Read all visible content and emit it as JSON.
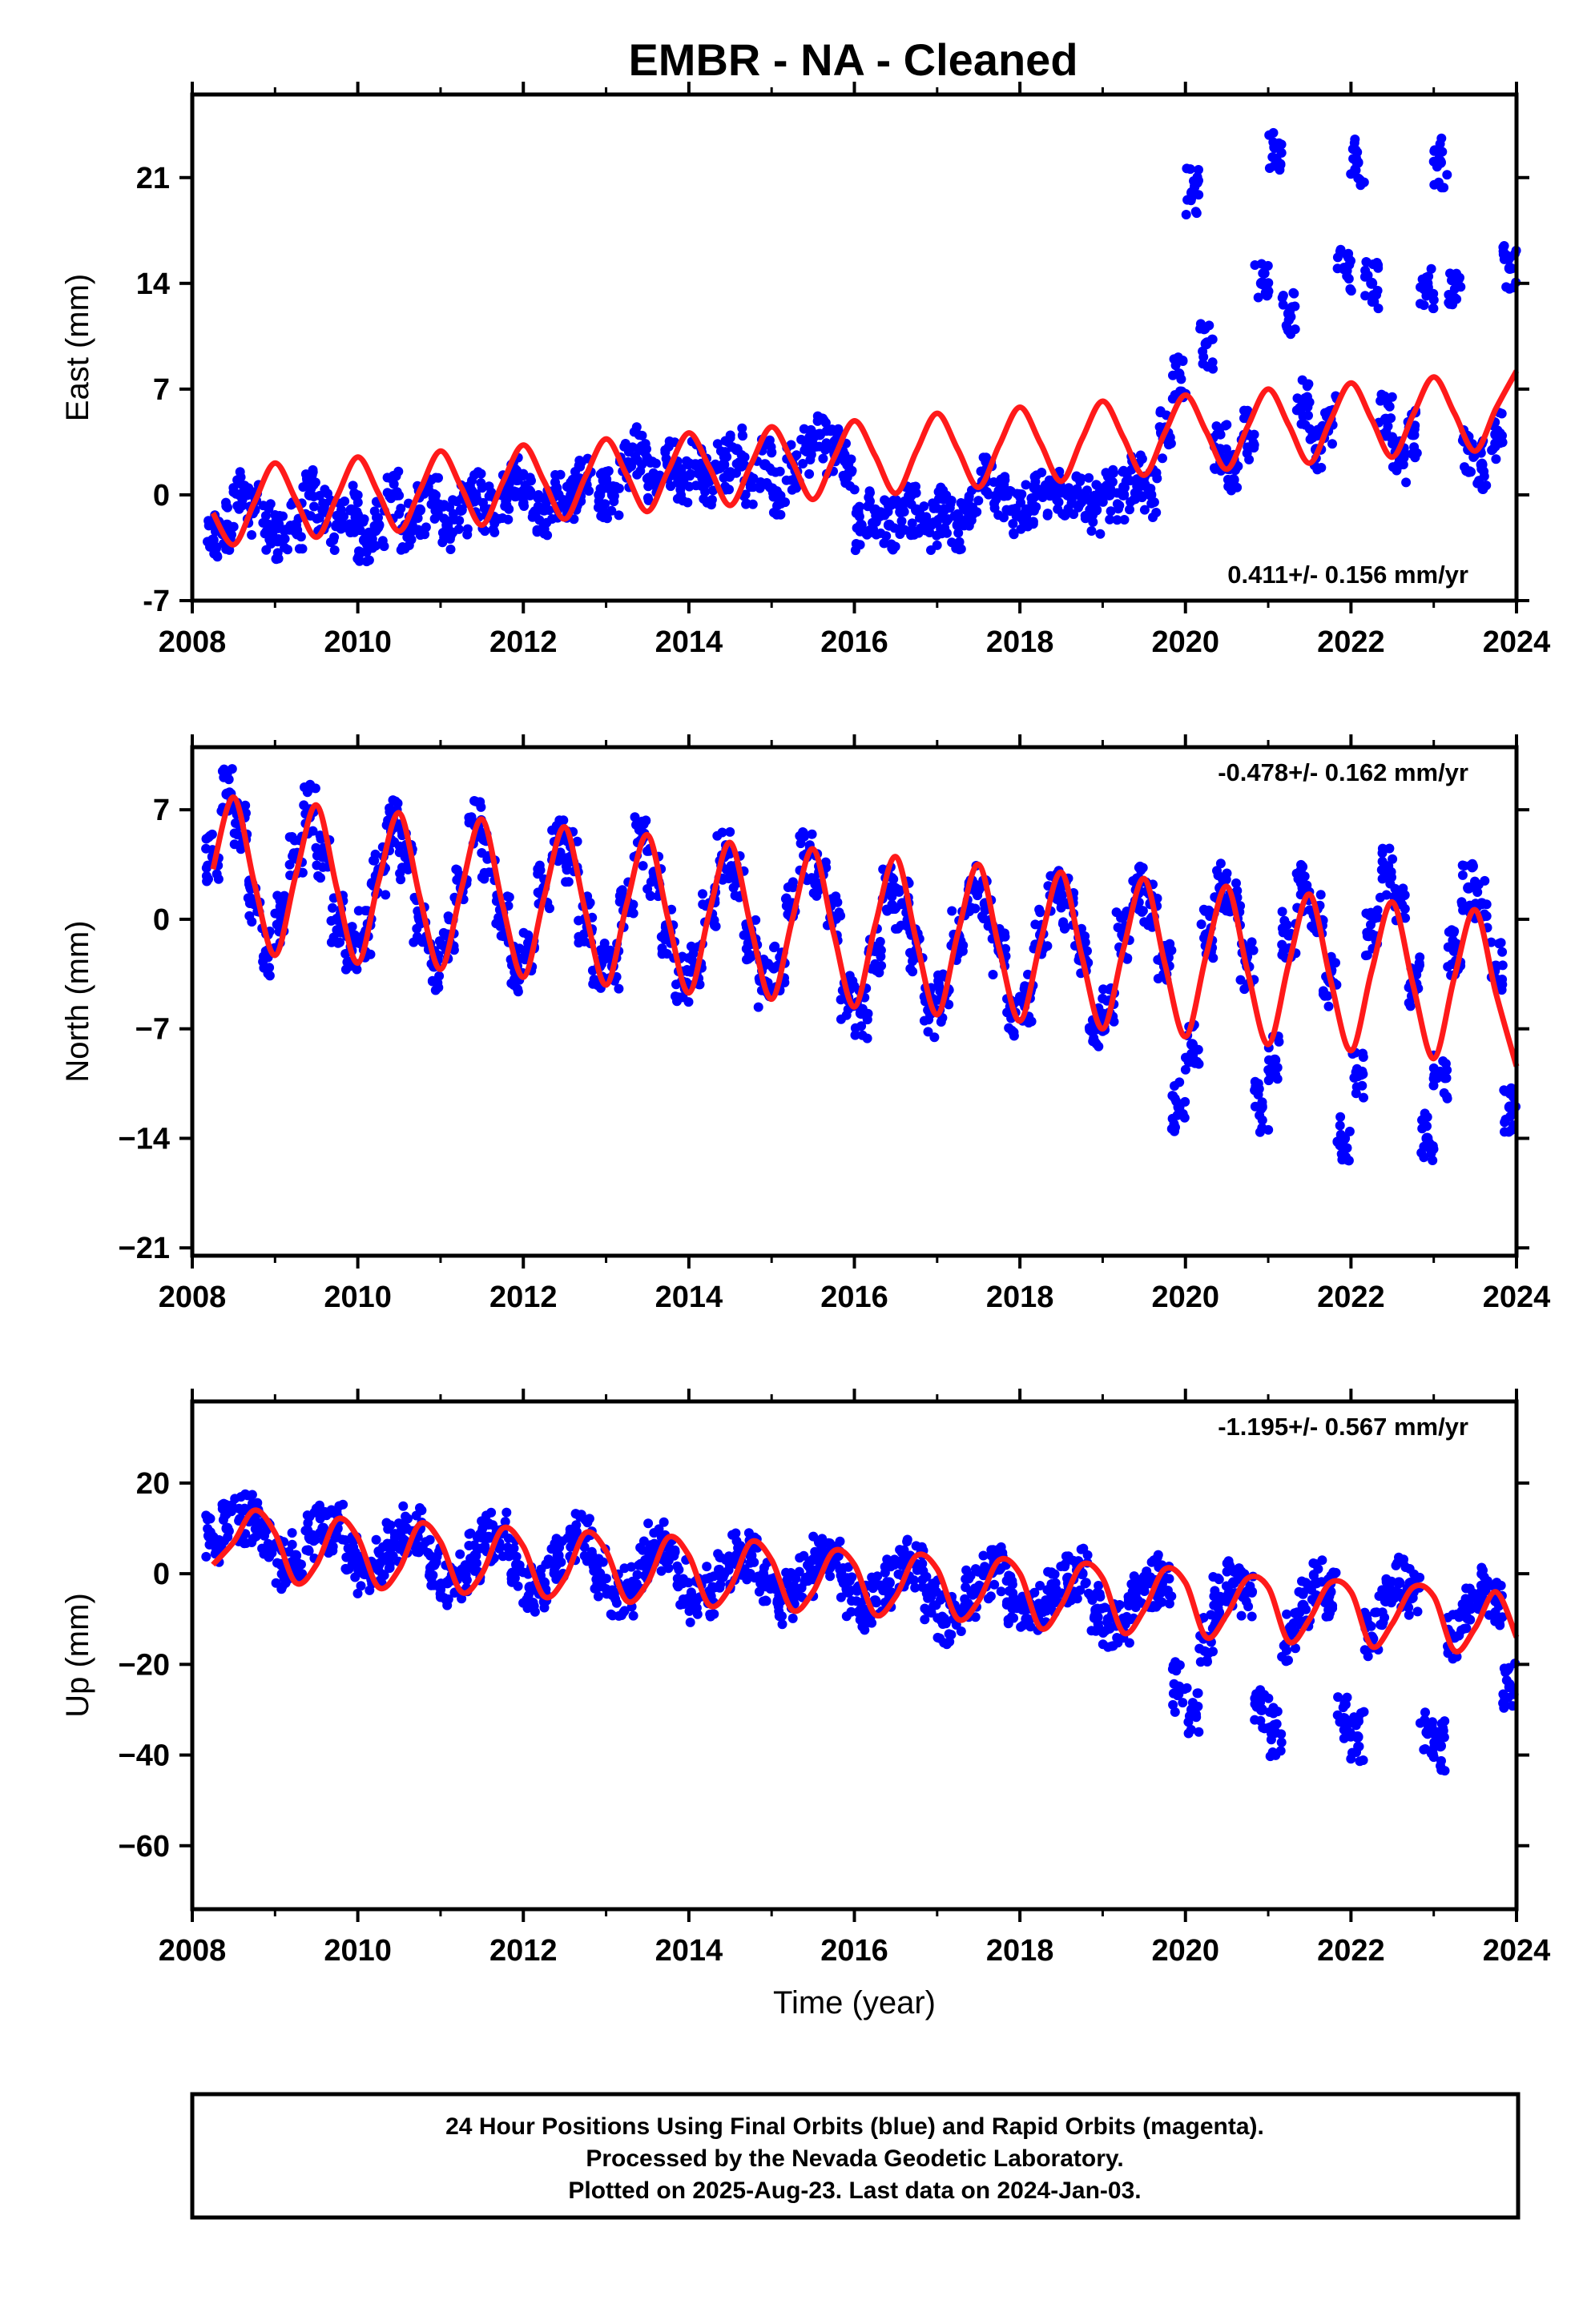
{
  "title": "EMBR  - NA - Cleaned",
  "colors": {
    "final_orbits": "#0000ff",
    "model": "#ff1a1a",
    "frame": "#000000"
  },
  "chart_data": [
    {
      "type": "scatter",
      "component": "east",
      "ylabel": "East (mm)",
      "xlabel": "",
      "xlim": [
        2008,
        2024
      ],
      "ylim": [
        -7,
        26.5
      ],
      "xticks": [
        2008,
        2010,
        2012,
        2014,
        2016,
        2018,
        2020,
        2022,
        2024
      ],
      "yticks": [
        -7,
        0,
        7,
        14,
        21
      ],
      "ytick_labels": [
        "-7",
        "0",
        "7",
        "14",
        "21"
      ],
      "rate_label": "0.411+/- 0.156 mm/yr",
      "series": [
        {
          "x": [
            2008.25,
            2008.42,
            2008.58,
            2008.75,
            2008.92,
            2009.08,
            2009.25,
            2009.42,
            2009.58,
            2009.75,
            2009.92,
            2010.08,
            2010.25,
            2010.42,
            2010.58,
            2010.75,
            2010.92,
            2011.08,
            2011.25,
            2011.42,
            2011.58,
            2011.75,
            2011.92,
            2012.08,
            2012.25,
            2012.42,
            2012.58,
            2012.75,
            2012.92,
            2013.08,
            2013.25,
            2013.42,
            2013.58,
            2013.75,
            2013.92,
            2014.08,
            2014.25,
            2014.42,
            2014.58,
            2014.75,
            2014.92,
            2015.08,
            2015.25,
            2015.42,
            2015.58,
            2015.75,
            2015.92,
            2016.08,
            2016.25,
            2016.42,
            2016.58,
            2016.75,
            2016.92,
            2017.08,
            2017.25,
            2017.42,
            2017.58,
            2017.75,
            2017.92,
            2018.08,
            2018.25,
            2018.42,
            2018.58,
            2018.75,
            2018.92,
            2019.08,
            2019.25,
            2019.42,
            2019.58,
            2019.75,
            2019.92,
            2020.08,
            2020.25,
            2020.42,
            2020.58,
            2020.75,
            2020.92,
            2021.08,
            2021.25,
            2021.42,
            2021.58,
            2021.75,
            2021.92,
            2022.08,
            2022.25,
            2022.42,
            2022.58,
            2022.75,
            2022.92,
            2023.08,
            2023.25,
            2023.42,
            2023.58,
            2023.75,
            2023.92
          ],
          "y": [
            -3,
            -2,
            0,
            -1,
            -2,
            -3,
            -2,
            0,
            -1,
            -2,
            -1,
            -3,
            -2,
            0,
            -2,
            -1,
            0,
            -2,
            -1,
            0,
            -1,
            0,
            1,
            0,
            -1,
            0,
            0,
            1,
            0,
            0,
            2,
            3,
            1,
            2,
            1,
            2,
            1,
            2,
            3,
            1,
            2,
            0,
            2,
            3,
            4,
            3,
            2,
            -2,
            -1,
            -2,
            -1,
            -1,
            -2,
            -1,
            -2,
            -1,
            1,
            0,
            -1,
            -1,
            0,
            0,
            0,
            0,
            -1,
            0,
            0,
            1,
            0,
            4,
            8,
            20,
            10,
            3,
            1,
            4,
            14,
            23,
            12,
            6,
            3,
            5,
            15,
            22,
            14,
            5,
            2,
            4,
            14,
            22,
            13,
            3,
            2,
            4,
            15
          ]
        }
      ],
      "model": {
        "x": [
          2008.25,
          2008.5,
          2008.75,
          2009.0,
          2009.25,
          2009.5,
          2009.75,
          2010.0,
          2010.25,
          2010.5,
          2010.75,
          2011.0,
          2011.25,
          2011.5,
          2011.75,
          2012.0,
          2012.25,
          2012.5,
          2012.75,
          2013.0,
          2013.25,
          2013.5,
          2013.75,
          2014.0,
          2014.25,
          2014.5,
          2014.75,
          2015.0,
          2015.25,
          2015.5,
          2015.75,
          2016.0,
          2016.25,
          2016.5,
          2016.75,
          2017.0,
          2017.25,
          2017.5,
          2017.75,
          2018.0,
          2018.25,
          2018.5,
          2018.75,
          2019.0,
          2019.25,
          2019.5,
          2019.75,
          2020.0,
          2020.25,
          2020.5,
          2020.75,
          2021.0,
          2021.25,
          2021.5,
          2021.75,
          2022.0,
          2022.25,
          2022.5,
          2022.75,
          2023.0,
          2023.25,
          2023.5,
          2023.75,
          2024.0
        ],
        "y": [
          -1.2,
          -3.3,
          -0.5,
          2.1,
          -0.3,
          -2.8,
          -0.1,
          2.5,
          0.1,
          -2.4,
          0.3,
          2.9,
          0.5,
          -2.0,
          0.8,
          3.3,
          0.9,
          -1.6,
          1.2,
          3.7,
          1.3,
          -1.1,
          1.6,
          4.1,
          1.8,
          -0.7,
          2.0,
          4.5,
          2.2,
          -0.3,
          2.4,
          4.9,
          2.6,
          0.1,
          2.9,
          5.4,
          3.0,
          0.5,
          3.3,
          5.8,
          3.4,
          0.9,
          3.7,
          6.2,
          3.8,
          1.3,
          4.1,
          6.6,
          4.2,
          1.7,
          4.5,
          7.0,
          4.6,
          2.1,
          4.9,
          7.4,
          5.0,
          2.5,
          5.3,
          7.8,
          5.4,
          2.9,
          5.7,
          8.2
        ]
      }
    },
    {
      "type": "scatter",
      "component": "north",
      "ylabel": "North (mm)",
      "xlabel": "",
      "xlim": [
        2008,
        2024
      ],
      "ylim": [
        -21.5,
        11
      ],
      "xticks": [
        2008,
        2010,
        2012,
        2014,
        2016,
        2018,
        2020,
        2022,
        2024
      ],
      "yticks": [
        -21,
        -14,
        -7,
        0,
        7
      ],
      "ytick_labels": [
        "−21",
        "−14",
        "−7",
        "0",
        "7"
      ],
      "rate_label": "-0.478+/- 0.162 mm/yr",
      "series": [
        {
          "x": [
            2008.25,
            2008.42,
            2008.58,
            2008.75,
            2008.92,
            2009.08,
            2009.25,
            2009.42,
            2009.58,
            2009.75,
            2009.92,
            2010.08,
            2010.25,
            2010.42,
            2010.58,
            2010.75,
            2010.92,
            2011.08,
            2011.25,
            2011.42,
            2011.58,
            2011.75,
            2011.92,
            2012.08,
            2012.25,
            2012.42,
            2012.58,
            2012.75,
            2012.92,
            2013.08,
            2013.25,
            2013.42,
            2013.58,
            2013.75,
            2013.92,
            2014.08,
            2014.25,
            2014.42,
            2014.58,
            2014.75,
            2014.92,
            2015.08,
            2015.25,
            2015.42,
            2015.58,
            2015.75,
            2015.92,
            2016.08,
            2016.25,
            2016.42,
            2016.58,
            2016.75,
            2016.92,
            2017.08,
            2017.25,
            2017.42,
            2017.58,
            2017.75,
            2017.92,
            2018.08,
            2018.25,
            2018.42,
            2018.58,
            2018.75,
            2018.92,
            2019.08,
            2019.25,
            2019.42,
            2019.58,
            2019.75,
            2019.92,
            2020.08,
            2020.25,
            2020.42,
            2020.58,
            2020.75,
            2020.92,
            2021.08,
            2021.25,
            2021.42,
            2021.58,
            2021.75,
            2021.92,
            2022.08,
            2022.25,
            2022.42,
            2022.58,
            2022.75,
            2022.92,
            2023.08,
            2023.25,
            2023.42,
            2023.58,
            2023.75,
            2023.92
          ],
          "y": [
            4,
            8,
            6,
            1,
            -2,
            0,
            4,
            7,
            4,
            0,
            -2,
            -1,
            3,
            6,
            4,
            0,
            -3,
            -1,
            2,
            6,
            4,
            0,
            -3,
            -2,
            2,
            5,
            4,
            0,
            -3,
            -3,
            1,
            5,
            3,
            -1,
            -4,
            -3,
            1,
            4,
            3,
            -1,
            -4,
            -3,
            1,
            4,
            3,
            0,
            -5,
            -6,
            -2,
            2,
            1,
            -2,
            -6,
            -5,
            -1,
            2,
            1,
            -2,
            -6,
            -5,
            -1,
            2,
            1,
            -2,
            -7,
            -6,
            -1,
            2,
            1,
            -3,
            -12,
            -8,
            -1,
            2,
            1,
            -3,
            -12,
            -9,
            -1,
            2,
            0,
            -4,
            -14,
            -10,
            -1,
            3,
            1,
            -4,
            -14,
            -10,
            -2,
            2,
            1,
            -3,
            -12
          ]
        }
      ],
      "model": {
        "x": [
          2008.25,
          2008.5,
          2008.75,
          2009.0,
          2009.25,
          2009.5,
          2009.75,
          2010.0,
          2010.25,
          2010.5,
          2010.75,
          2011.0,
          2011.25,
          2011.5,
          2011.75,
          2012.0,
          2012.25,
          2012.5,
          2012.75,
          2013.0,
          2013.25,
          2013.5,
          2013.75,
          2014.0,
          2014.25,
          2014.5,
          2014.75,
          2015.0,
          2015.25,
          2015.5,
          2015.75,
          2016.0,
          2016.25,
          2016.5,
          2016.75,
          2017.0,
          2017.25,
          2017.5,
          2017.75,
          2018.0,
          2018.25,
          2018.5,
          2018.75,
          2019.0,
          2019.25,
          2019.5,
          2019.75,
          2020.0,
          2020.25,
          2020.5,
          2020.75,
          2021.0,
          2021.25,
          2021.5,
          2021.75,
          2022.0,
          2022.25,
          2022.5,
          2022.75,
          2023.0,
          2023.25,
          2023.5,
          2023.75,
          2024.0
        ],
        "y": [
          3.2,
          7.8,
          2.3,
          -2.3,
          2.8,
          7.3,
          1.9,
          -2.8,
          2.4,
          6.8,
          1.4,
          -3.2,
          1.9,
          6.4,
          0.9,
          -3.7,
          1.4,
          5.9,
          0.5,
          -4.2,
          1.0,
          5.4,
          0.0,
          -4.7,
          0.5,
          4.9,
          -0.5,
          -5.1,
          0.0,
          4.5,
          -0.9,
          -5.6,
          -0.4,
          4.0,
          -1.4,
          -6.1,
          -0.9,
          3.5,
          -1.9,
          -6.5,
          -1.4,
          3.0,
          -2.4,
          -7.0,
          -1.9,
          2.6,
          -2.8,
          -7.5,
          -2.3,
          2.1,
          -3.3,
          -8.0,
          -2.8,
          1.6,
          -3.8,
          -8.4,
          -3.3,
          1.1,
          -4.2,
          -8.9,
          -3.7,
          0.6,
          -4.7,
          -9.4
        ]
      }
    },
    {
      "type": "scatter",
      "component": "up",
      "ylabel": "Up (mm)",
      "xlabel": "Time (year)",
      "xlim": [
        2008,
        2024
      ],
      "ylim": [
        -74,
        38
      ],
      "xticks": [
        2008,
        2010,
        2012,
        2014,
        2016,
        2018,
        2020,
        2022,
        2024
      ],
      "yticks": [
        -60,
        -40,
        -20,
        0,
        20
      ],
      "ytick_labels": [
        "−60",
        "−40",
        "−20",
        "0",
        "20"
      ],
      "rate_label": "-1.195+/- 0.567 mm/yr",
      "series": [
        {
          "x": [
            2008.25,
            2008.42,
            2008.58,
            2008.75,
            2008.92,
            2009.08,
            2009.25,
            2009.42,
            2009.58,
            2009.75,
            2009.92,
            2010.08,
            2010.25,
            2010.42,
            2010.58,
            2010.75,
            2010.92,
            2011.08,
            2011.25,
            2011.42,
            2011.58,
            2011.75,
            2011.92,
            2012.08,
            2012.25,
            2012.42,
            2012.58,
            2012.75,
            2012.92,
            2013.08,
            2013.25,
            2013.42,
            2013.58,
            2013.75,
            2013.92,
            2014.08,
            2014.25,
            2014.42,
            2014.58,
            2014.75,
            2014.92,
            2015.08,
            2015.25,
            2015.42,
            2015.58,
            2015.75,
            2015.92,
            2016.08,
            2016.25,
            2016.42,
            2016.58,
            2016.75,
            2016.92,
            2017.08,
            2017.25,
            2017.42,
            2017.58,
            2017.75,
            2017.92,
            2018.08,
            2018.25,
            2018.42,
            2018.58,
            2018.75,
            2018.92,
            2019.08,
            2019.25,
            2019.42,
            2019.58,
            2019.75,
            2019.92,
            2020.08,
            2020.25,
            2020.42,
            2020.58,
            2020.75,
            2020.92,
            2021.08,
            2021.25,
            2021.42,
            2021.58,
            2021.75,
            2021.92,
            2022.08,
            2022.25,
            2022.42,
            2022.58,
            2022.75,
            2022.92,
            2023.08,
            2023.25,
            2023.42,
            2023.58,
            2023.75,
            2023.92
          ],
          "y": [
            8,
            10,
            12,
            12,
            6,
            2,
            4,
            8,
            10,
            10,
            4,
            0,
            2,
            6,
            10,
            10,
            2,
            -2,
            0,
            4,
            8,
            9,
            2,
            -3,
            -2,
            4,
            8,
            8,
            0,
            -4,
            -4,
            2,
            6,
            6,
            -2,
            -6,
            -4,
            0,
            4,
            4,
            -2,
            -6,
            -5,
            -1,
            4,
            4,
            -4,
            -8,
            -6,
            -2,
            2,
            2,
            -5,
            -10,
            -8,
            -4,
            0,
            1,
            -6,
            -10,
            -8,
            -5,
            -1,
            0,
            -8,
            -12,
            -10,
            -6,
            -2,
            -1,
            -25,
            -30,
            -14,
            -6,
            -2,
            -4,
            -30,
            -35,
            -14,
            -7,
            -2,
            -4,
            -32,
            -36,
            -14,
            -6,
            -2,
            -4,
            -35,
            -38,
            -14,
            -7,
            -4,
            -6,
            -25
          ]
        }
      ],
      "model": {
        "x": [
          2008.25,
          2008.5,
          2008.75,
          2009.0,
          2009.25,
          2009.5,
          2009.75,
          2010.0,
          2010.25,
          2010.5,
          2010.75,
          2011.0,
          2011.25,
          2011.5,
          2011.75,
          2012.0,
          2012.25,
          2012.5,
          2012.75,
          2013.0,
          2013.25,
          2013.5,
          2013.75,
          2014.0,
          2014.25,
          2014.5,
          2014.75,
          2015.0,
          2015.25,
          2015.5,
          2015.75,
          2016.0,
          2016.25,
          2016.5,
          2016.75,
          2017.0,
          2017.25,
          2017.5,
          2017.75,
          2018.0,
          2018.25,
          2018.5,
          2018.75,
          2019.0,
          2019.25,
          2019.5,
          2019.75,
          2020.0,
          2020.25,
          2020.5,
          2020.75,
          2021.0,
          2021.25,
          2021.5,
          2021.75,
          2022.0,
          2022.25,
          2022.5,
          2022.75,
          2023.0,
          2023.25,
          2023.5,
          2023.75,
          2024.0
        ],
        "y": [
          2,
          7,
          14,
          9,
          -2,
          2,
          12,
          8,
          -3,
          1,
          11,
          7,
          -4,
          0,
          10,
          6,
          -5,
          -1,
          9,
          5,
          -6,
          -2,
          8,
          4,
          -7,
          -3,
          7,
          3,
          -8,
          -4,
          5,
          2,
          -9,
          -5,
          4,
          1,
          -10,
          -6,
          3,
          0,
          -12,
          -7,
          2,
          -1,
          -13,
          -8,
          1,
          -2,
          -14,
          -9,
          -1,
          -3,
          -15,
          -10,
          -2,
          -4,
          -16,
          -11,
          -3,
          -5,
          -17,
          -12,
          -4,
          -14
        ]
      }
    }
  ],
  "footer": {
    "line1": "24 Hour Positions Using Final Orbits (blue) and Rapid Orbits (magenta).",
    "line2": "Processed by the Nevada Geodetic Laboratory.",
    "line3": "Plotted on 2025-Aug-23. Last data on 2024-Jan-03."
  }
}
